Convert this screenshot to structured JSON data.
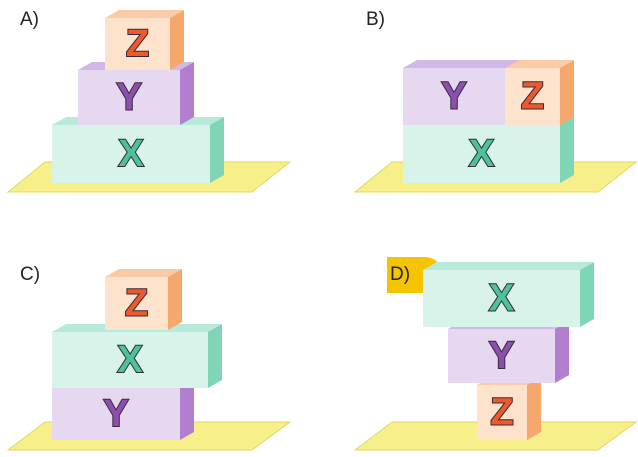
{
  "options": [
    {
      "label": "A)",
      "blocks": [
        "Z",
        "Y",
        "X"
      ]
    },
    {
      "label": "B)",
      "blocks": [
        "Y",
        "Z",
        "X"
      ]
    },
    {
      "label": "C)",
      "blocks": [
        "Z",
        "X",
        "Y"
      ]
    },
    {
      "label": "D)",
      "blocks": [
        "X",
        "Y",
        "Z"
      ]
    }
  ]
}
